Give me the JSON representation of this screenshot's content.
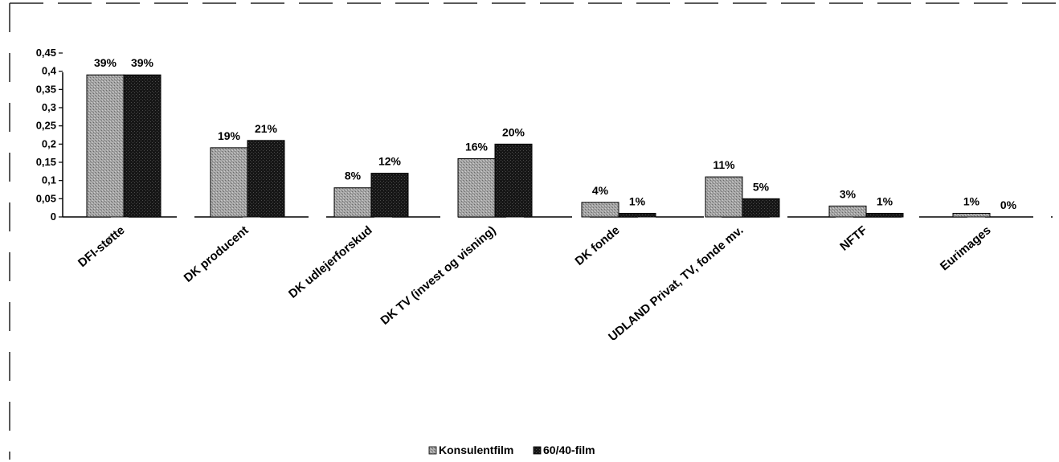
{
  "chart_data": {
    "type": "bar",
    "categories": [
      "DFI-støtte",
      "DK producent",
      "DK udlejerforskud",
      "DK TV (invest og visning)",
      "DK fonde",
      "UDLAND Privat, TV, fonde mv.",
      "NFTF",
      "Eurimages"
    ],
    "series": [
      {
        "name": "Konsulentfilm",
        "values": [
          0.39,
          0.19,
          0.08,
          0.16,
          0.04,
          0.11,
          0.03,
          0.01
        ],
        "labels": [
          "39%",
          "19%",
          "8%",
          "16%",
          "4%",
          "11%",
          "3%",
          "1%"
        ],
        "color": "#9a9a9a"
      },
      {
        "name": "60/40-film",
        "values": [
          0.39,
          0.21,
          0.12,
          0.2,
          0.01,
          0.05,
          0.01,
          0.0
        ],
        "labels": [
          "39%",
          "21%",
          "12%",
          "20%",
          "1%",
          "5%",
          "1%",
          "0%"
        ],
        "color": "#1a1a1a"
      }
    ],
    "yticks": [
      "0",
      "0,05",
      "0,1",
      "0,15",
      "0,2",
      "0,25",
      "0,3",
      "0,35",
      "0,4",
      "0,45"
    ],
    "ylim": [
      0,
      0.45
    ],
    "grid": false,
    "legend_position": "bottom"
  }
}
